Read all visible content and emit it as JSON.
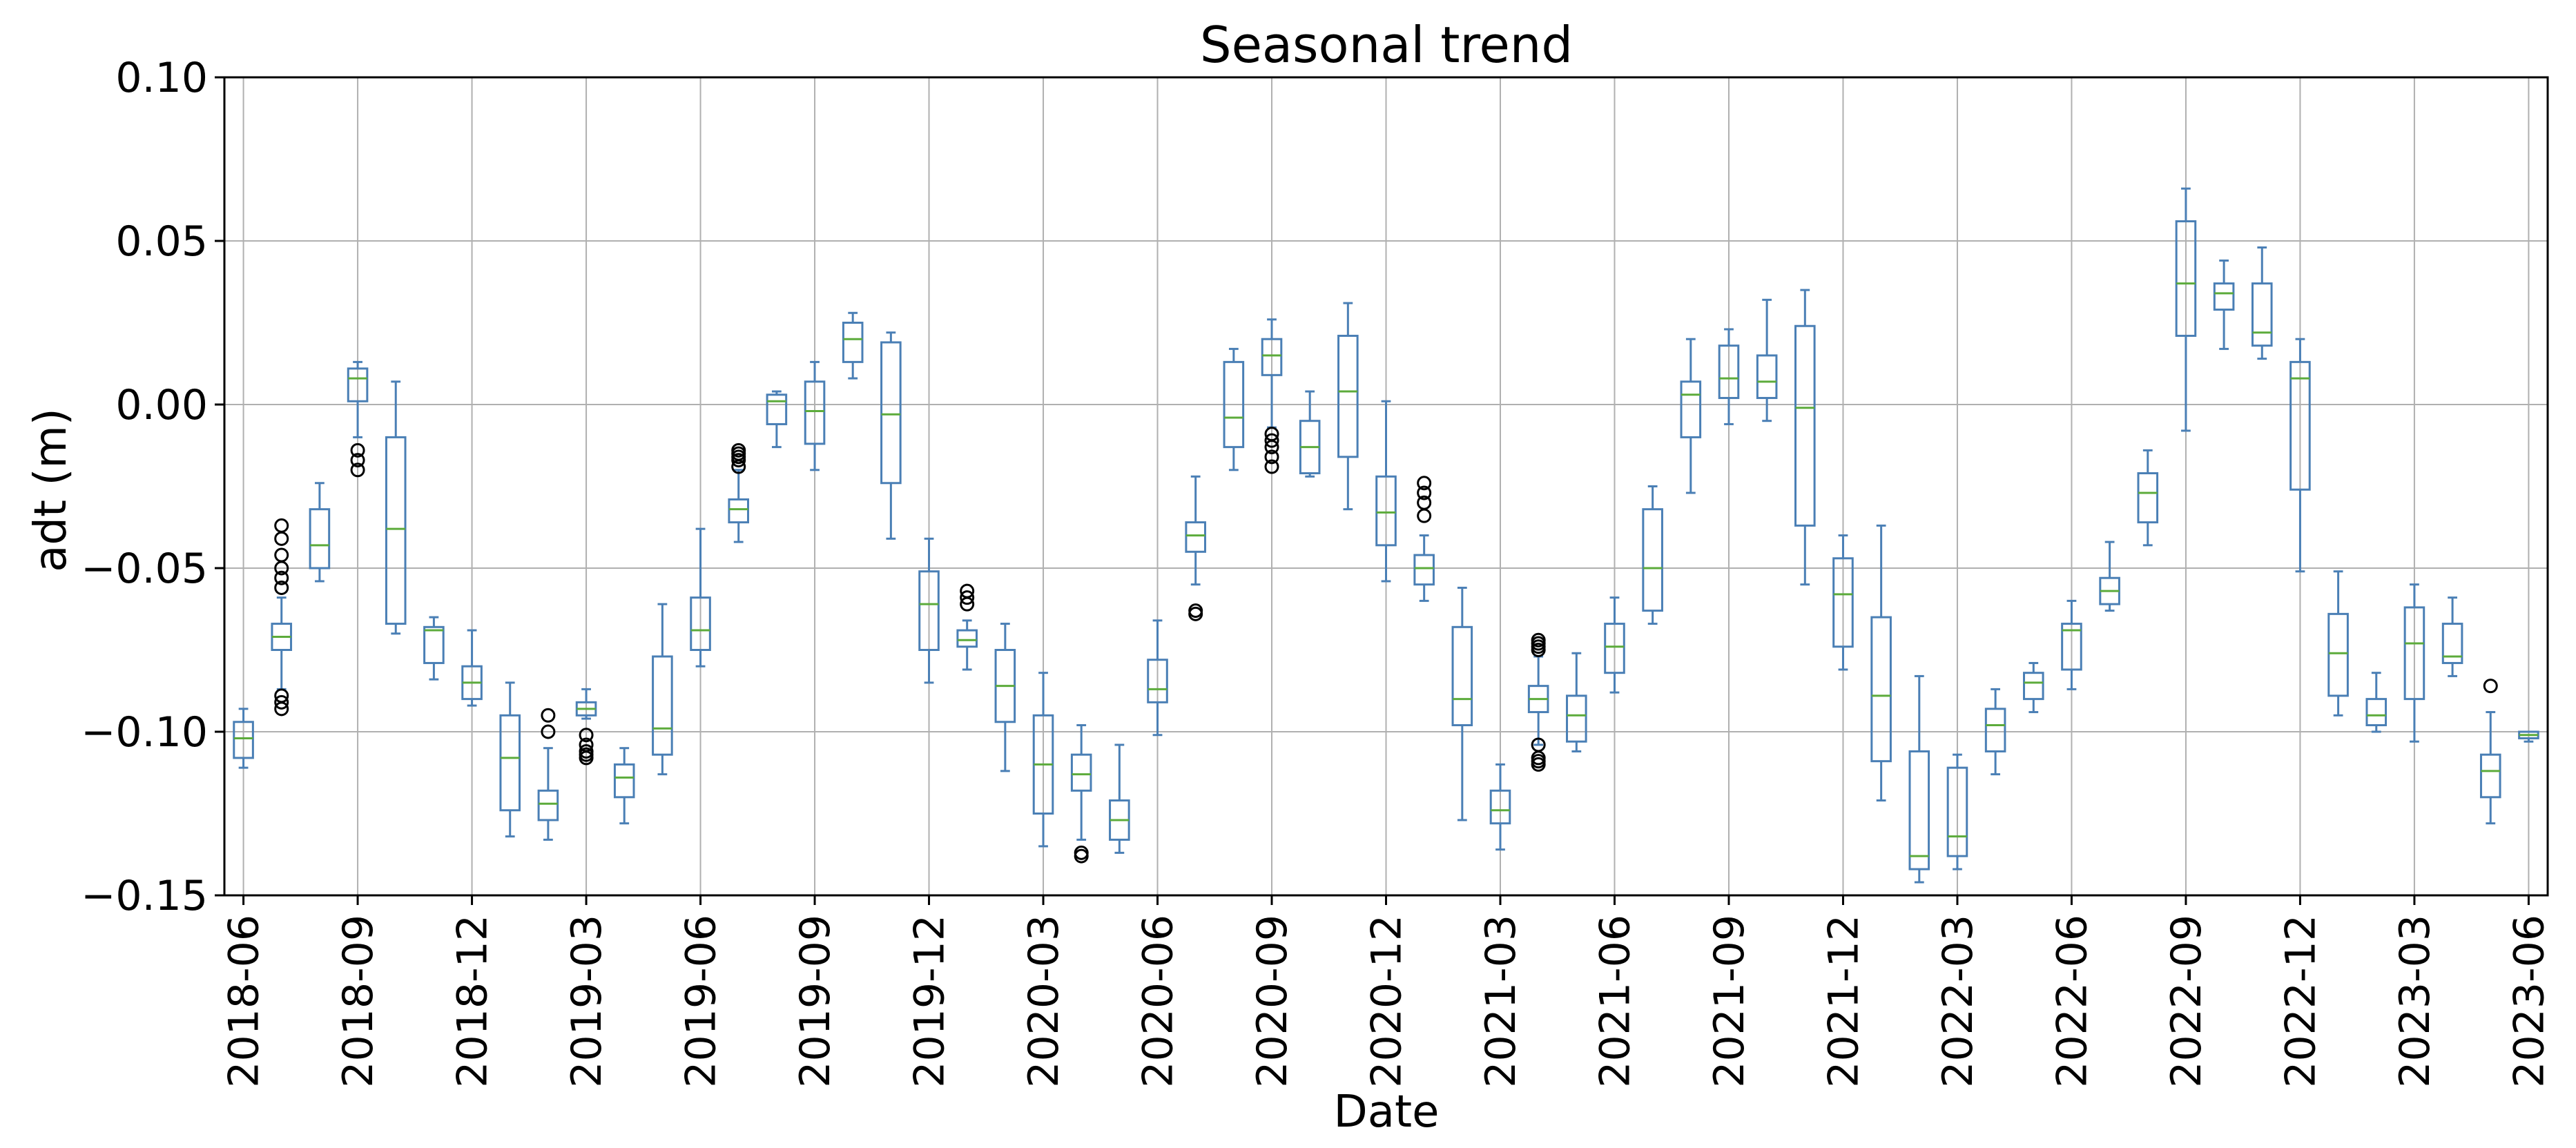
{
  "chart_data": {
    "type": "box",
    "title": "Seasonal trend",
    "xlabel": "Date",
    "ylabel": "adt (m)",
    "ylim": [
      -0.15,
      0.1
    ],
    "yticks": [
      -0.15,
      -0.1,
      -0.05,
      0.0,
      0.05,
      0.1
    ],
    "ytick_labels": [
      "−0.15",
      "−0.10",
      "−0.05",
      "0.00",
      "0.05",
      "0.10"
    ],
    "xtick_labels": [
      "2018-06",
      "2018-09",
      "2018-12",
      "2019-03",
      "2019-06",
      "2019-09",
      "2019-12",
      "2020-03",
      "2020-06",
      "2020-09",
      "2020-12",
      "2021-03",
      "2021-06",
      "2021-09",
      "2021-12",
      "2022-03",
      "2022-06",
      "2022-09",
      "2022-12",
      "2023-03",
      "2023-06"
    ],
    "grid": true,
    "colors": {
      "box": "#4a7fb5",
      "median": "#5cab3b",
      "outlier": "#000000",
      "grid": "#b0b0b0",
      "axes": "#000000"
    },
    "boxes": [
      {
        "date": "2018-06",
        "whislo": -0.111,
        "q1": -0.108,
        "med": -0.102,
        "q3": -0.097,
        "whishi": -0.093,
        "fliers": []
      },
      {
        "date": "2018-07",
        "whislo": -0.087,
        "q1": -0.075,
        "med": -0.071,
        "q3": -0.067,
        "whishi": -0.059,
        "fliers": [
          -0.037,
          -0.041,
          -0.046,
          -0.05,
          -0.053,
          -0.056,
          -0.089,
          -0.091,
          -0.093
        ]
      },
      {
        "date": "2018-08",
        "whislo": -0.054,
        "q1": -0.05,
        "med": -0.043,
        "q3": -0.032,
        "whishi": -0.024,
        "fliers": []
      },
      {
        "date": "2018-09",
        "whislo": -0.01,
        "q1": 0.001,
        "med": 0.008,
        "q3": 0.011,
        "whishi": 0.013,
        "fliers": [
          -0.014,
          -0.017,
          -0.02
        ]
      },
      {
        "date": "2018-10",
        "whislo": -0.07,
        "q1": -0.067,
        "med": -0.038,
        "q3": -0.01,
        "whishi": 0.007,
        "fliers": []
      },
      {
        "date": "2018-11",
        "whislo": -0.084,
        "q1": -0.079,
        "med": -0.069,
        "q3": -0.068,
        "whishi": -0.065,
        "fliers": []
      },
      {
        "date": "2018-12",
        "whislo": -0.092,
        "q1": -0.09,
        "med": -0.085,
        "q3": -0.08,
        "whishi": -0.069,
        "fliers": []
      },
      {
        "date": "2019-01",
        "whislo": -0.132,
        "q1": -0.124,
        "med": -0.108,
        "q3": -0.095,
        "whishi": -0.085,
        "fliers": []
      },
      {
        "date": "2019-02",
        "whislo": -0.133,
        "q1": -0.127,
        "med": -0.122,
        "q3": -0.118,
        "whishi": -0.105,
        "fliers": [
          -0.095,
          -0.1
        ]
      },
      {
        "date": "2019-03",
        "whislo": -0.096,
        "q1": -0.095,
        "med": -0.093,
        "q3": -0.091,
        "whishi": -0.087,
        "fliers": [
          -0.101,
          -0.104,
          -0.106,
          -0.107,
          -0.108
        ]
      },
      {
        "date": "2019-04",
        "whislo": -0.128,
        "q1": -0.12,
        "med": -0.114,
        "q3": -0.11,
        "whishi": -0.105,
        "fliers": []
      },
      {
        "date": "2019-05",
        "whislo": -0.113,
        "q1": -0.107,
        "med": -0.099,
        "q3": -0.077,
        "whishi": -0.061,
        "fliers": []
      },
      {
        "date": "2019-06",
        "whislo": -0.08,
        "q1": -0.075,
        "med": -0.069,
        "q3": -0.059,
        "whishi": -0.038,
        "fliers": []
      },
      {
        "date": "2019-07",
        "whislo": -0.042,
        "q1": -0.036,
        "med": -0.032,
        "q3": -0.029,
        "whishi": -0.02,
        "fliers": [
          -0.014,
          -0.015,
          -0.016,
          -0.017,
          -0.019
        ]
      },
      {
        "date": "2019-08",
        "whislo": -0.013,
        "q1": -0.006,
        "med": 0.001,
        "q3": 0.003,
        "whishi": 0.004,
        "fliers": []
      },
      {
        "date": "2019-09",
        "whislo": -0.02,
        "q1": -0.012,
        "med": -0.002,
        "q3": 0.007,
        "whishi": 0.013,
        "fliers": []
      },
      {
        "date": "2019-10",
        "whislo": 0.008,
        "q1": 0.013,
        "med": 0.02,
        "q3": 0.025,
        "whishi": 0.028,
        "fliers": []
      },
      {
        "date": "2019-11",
        "whislo": -0.041,
        "q1": -0.024,
        "med": -0.003,
        "q3": 0.019,
        "whishi": 0.022,
        "fliers": []
      },
      {
        "date": "2019-12",
        "whislo": -0.085,
        "q1": -0.075,
        "med": -0.061,
        "q3": -0.051,
        "whishi": -0.041,
        "fliers": []
      },
      {
        "date": "2020-01",
        "whislo": -0.081,
        "q1": -0.074,
        "med": -0.072,
        "q3": -0.069,
        "whishi": -0.066,
        "fliers": [
          -0.057,
          -0.059,
          -0.061
        ]
      },
      {
        "date": "2020-02",
        "whislo": -0.112,
        "q1": -0.097,
        "med": -0.086,
        "q3": -0.075,
        "whishi": -0.067,
        "fliers": []
      },
      {
        "date": "2020-03",
        "whislo": -0.135,
        "q1": -0.125,
        "med": -0.11,
        "q3": -0.095,
        "whishi": -0.082,
        "fliers": []
      },
      {
        "date": "2020-04",
        "whislo": -0.133,
        "q1": -0.118,
        "med": -0.113,
        "q3": -0.107,
        "whishi": -0.098,
        "fliers": [
          -0.137,
          -0.138
        ]
      },
      {
        "date": "2020-05",
        "whislo": -0.137,
        "q1": -0.133,
        "med": -0.127,
        "q3": -0.121,
        "whishi": -0.104,
        "fliers": []
      },
      {
        "date": "2020-06",
        "whislo": -0.101,
        "q1": -0.091,
        "med": -0.087,
        "q3": -0.078,
        "whishi": -0.066,
        "fliers": []
      },
      {
        "date": "2020-07",
        "whislo": -0.055,
        "q1": -0.045,
        "med": -0.04,
        "q3": -0.036,
        "whishi": -0.022,
        "fliers": [
          -0.063,
          -0.064
        ]
      },
      {
        "date": "2020-08",
        "whislo": -0.02,
        "q1": -0.013,
        "med": -0.004,
        "q3": 0.013,
        "whishi": 0.017,
        "fliers": []
      },
      {
        "date": "2020-09",
        "whislo": -0.007,
        "q1": 0.009,
        "med": 0.015,
        "q3": 0.02,
        "whishi": 0.026,
        "fliers": [
          -0.009,
          -0.011,
          -0.013,
          -0.016,
          -0.019
        ]
      },
      {
        "date": "2020-10",
        "whislo": -0.022,
        "q1": -0.021,
        "med": -0.013,
        "q3": -0.005,
        "whishi": 0.004,
        "fliers": []
      },
      {
        "date": "2020-11",
        "whislo": -0.032,
        "q1": -0.016,
        "med": 0.004,
        "q3": 0.021,
        "whishi": 0.031,
        "fliers": []
      },
      {
        "date": "2020-12",
        "whislo": -0.054,
        "q1": -0.043,
        "med": -0.033,
        "q3": -0.022,
        "whishi": 0.001,
        "fliers": []
      },
      {
        "date": "2021-01",
        "whislo": -0.06,
        "q1": -0.055,
        "med": -0.05,
        "q3": -0.046,
        "whishi": -0.04,
        "fliers": [
          -0.024,
          -0.027,
          -0.03,
          -0.034
        ]
      },
      {
        "date": "2021-02",
        "whislo": -0.127,
        "q1": -0.098,
        "med": -0.09,
        "q3": -0.068,
        "whishi": -0.056,
        "fliers": []
      },
      {
        "date": "2021-03",
        "whislo": -0.136,
        "q1": -0.128,
        "med": -0.124,
        "q3": -0.118,
        "whishi": -0.11,
        "fliers": []
      },
      {
        "date": "2021-04",
        "whislo": -0.104,
        "q1": -0.094,
        "med": -0.09,
        "q3": -0.086,
        "whishi": -0.077,
        "fliers": [
          -0.072,
          -0.073,
          -0.074,
          -0.075,
          -0.104,
          -0.108,
          -0.109,
          -0.11
        ]
      },
      {
        "date": "2021-05",
        "whislo": -0.106,
        "q1": -0.103,
        "med": -0.095,
        "q3": -0.089,
        "whishi": -0.076,
        "fliers": []
      },
      {
        "date": "2021-06",
        "whislo": -0.088,
        "q1": -0.082,
        "med": -0.074,
        "q3": -0.067,
        "whishi": -0.059,
        "fliers": []
      },
      {
        "date": "2021-07",
        "whislo": -0.067,
        "q1": -0.063,
        "med": -0.05,
        "q3": -0.032,
        "whishi": -0.025,
        "fliers": []
      },
      {
        "date": "2021-08",
        "whislo": -0.027,
        "q1": -0.01,
        "med": 0.003,
        "q3": 0.007,
        "whishi": 0.02,
        "fliers": []
      },
      {
        "date": "2021-09",
        "whislo": -0.006,
        "q1": 0.002,
        "med": 0.008,
        "q3": 0.018,
        "whishi": 0.023,
        "fliers": []
      },
      {
        "date": "2021-10",
        "whislo": -0.005,
        "q1": 0.002,
        "med": 0.007,
        "q3": 0.015,
        "whishi": 0.032,
        "fliers": []
      },
      {
        "date": "2021-11",
        "whislo": -0.055,
        "q1": -0.037,
        "med": -0.001,
        "q3": 0.024,
        "whishi": 0.035,
        "fliers": []
      },
      {
        "date": "2021-12",
        "whislo": -0.081,
        "q1": -0.074,
        "med": -0.058,
        "q3": -0.047,
        "whishi": -0.04,
        "fliers": []
      },
      {
        "date": "2022-01",
        "whislo": -0.121,
        "q1": -0.109,
        "med": -0.089,
        "q3": -0.065,
        "whishi": -0.037,
        "fliers": []
      },
      {
        "date": "2022-02",
        "whislo": -0.146,
        "q1": -0.142,
        "med": -0.138,
        "q3": -0.106,
        "whishi": -0.083,
        "fliers": []
      },
      {
        "date": "2022-03",
        "whislo": -0.142,
        "q1": -0.138,
        "med": -0.132,
        "q3": -0.111,
        "whishi": -0.107,
        "fliers": []
      },
      {
        "date": "2022-04",
        "whislo": -0.113,
        "q1": -0.106,
        "med": -0.098,
        "q3": -0.093,
        "whishi": -0.087,
        "fliers": []
      },
      {
        "date": "2022-05",
        "whislo": -0.094,
        "q1": -0.09,
        "med": -0.085,
        "q3": -0.082,
        "whishi": -0.079,
        "fliers": []
      },
      {
        "date": "2022-06",
        "whislo": -0.087,
        "q1": -0.081,
        "med": -0.069,
        "q3": -0.067,
        "whishi": -0.06,
        "fliers": []
      },
      {
        "date": "2022-07",
        "whislo": -0.063,
        "q1": -0.061,
        "med": -0.057,
        "q3": -0.053,
        "whishi": -0.042,
        "fliers": []
      },
      {
        "date": "2022-08",
        "whislo": -0.043,
        "q1": -0.036,
        "med": -0.027,
        "q3": -0.021,
        "whishi": -0.014,
        "fliers": []
      },
      {
        "date": "2022-09",
        "whislo": -0.008,
        "q1": 0.021,
        "med": 0.037,
        "q3": 0.056,
        "whishi": 0.066,
        "fliers": []
      },
      {
        "date": "2022-10",
        "whislo": 0.017,
        "q1": 0.029,
        "med": 0.034,
        "q3": 0.037,
        "whishi": 0.044,
        "fliers": []
      },
      {
        "date": "2022-11",
        "whislo": 0.014,
        "q1": 0.018,
        "med": 0.022,
        "q3": 0.037,
        "whishi": 0.048,
        "fliers": []
      },
      {
        "date": "2022-12",
        "whislo": -0.051,
        "q1": -0.026,
        "med": 0.008,
        "q3": 0.013,
        "whishi": 0.02,
        "fliers": []
      },
      {
        "date": "2023-01",
        "whislo": -0.095,
        "q1": -0.089,
        "med": -0.076,
        "q3": -0.064,
        "whishi": -0.051,
        "fliers": []
      },
      {
        "date": "2023-02",
        "whislo": -0.1,
        "q1": -0.098,
        "med": -0.095,
        "q3": -0.09,
        "whishi": -0.082,
        "fliers": []
      },
      {
        "date": "2023-03",
        "whislo": -0.103,
        "q1": -0.09,
        "med": -0.073,
        "q3": -0.062,
        "whishi": -0.055,
        "fliers": []
      },
      {
        "date": "2023-04",
        "whislo": -0.083,
        "q1": -0.079,
        "med": -0.077,
        "q3": -0.067,
        "whishi": -0.059,
        "fliers": []
      },
      {
        "date": "2023-05",
        "whislo": -0.128,
        "q1": -0.12,
        "med": -0.112,
        "q3": -0.107,
        "whishi": -0.094,
        "fliers": [
          -0.086
        ]
      },
      {
        "date": "2023-06",
        "whislo": -0.103,
        "q1": -0.102,
        "med": -0.101,
        "q3": -0.1,
        "whishi": -0.1,
        "fliers": []
      }
    ]
  }
}
